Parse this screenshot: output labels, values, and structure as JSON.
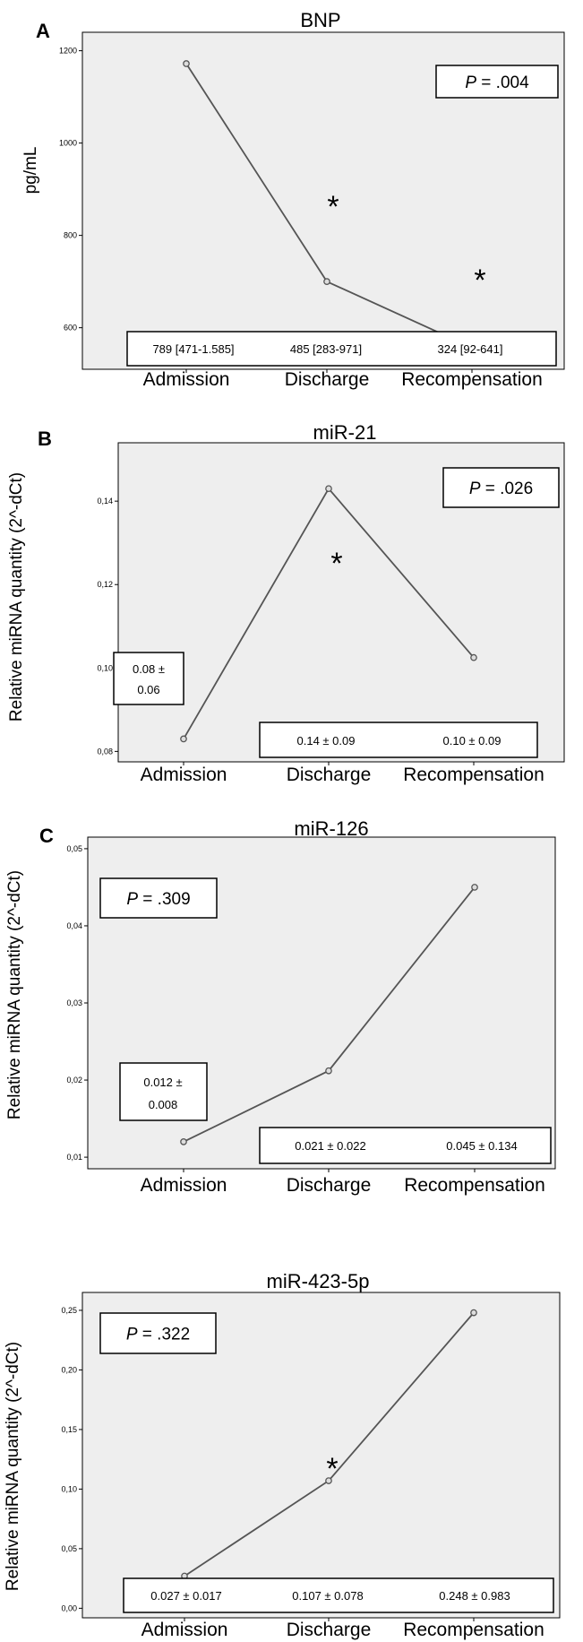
{
  "chart_data": [
    {
      "type": "line",
      "panel_letter": "A",
      "title": "BNP",
      "ylabel": "pg/mL",
      "categories": [
        "Admission",
        "Discharge",
        "Recompensation"
      ],
      "values": [
        1172,
        700,
        557
      ],
      "ylim": [
        510,
        1240
      ],
      "yticks": [
        600,
        800,
        1000,
        1200
      ],
      "ytick_labels": [
        "600",
        "800",
        "1000",
        "1200"
      ],
      "p_value": {
        "label": "P",
        "text": " = .004",
        "position": "top-right"
      },
      "significance_marks": [
        {
          "segment": 0,
          "text": "*"
        },
        {
          "segment": 1,
          "text": "*"
        }
      ],
      "value_labels": [
        {
          "category": "Admission",
          "text": "789 [471-1.585]"
        },
        {
          "category": "Discharge",
          "text": "485 [283-971]"
        },
        {
          "category": "Recompensation",
          "text": "324 [92-641]"
        }
      ],
      "grid": false,
      "legend": "none"
    },
    {
      "type": "line",
      "panel_letter": "B",
      "title": "miR-21",
      "ylabel": "Relative miRNA quantity (2^-dCt)",
      "categories": [
        "Admission",
        "Discharge",
        "Recompensation"
      ],
      "values": [
        0.083,
        0.143,
        0.1025
      ],
      "ylim": [
        0.0775,
        0.154
      ],
      "yticks": [
        0.08,
        0.1,
        0.12,
        0.14
      ],
      "ytick_labels": [
        "0,08",
        "0,10",
        "0,12",
        "0,14"
      ],
      "p_value": {
        "label": "P",
        "text": " = .026",
        "position": "top-right"
      },
      "significance_marks": [
        {
          "segment": 0,
          "text": "*"
        }
      ],
      "value_labels": [
        {
          "category": "Admission",
          "text": "0.08 ±",
          "text2": "0.06"
        },
        {
          "category": "Discharge",
          "text": "0.14 ± 0.09"
        },
        {
          "category": "Recompensation",
          "text": "0.10 ± 0.09"
        }
      ],
      "grid": false,
      "legend": "none"
    },
    {
      "type": "line",
      "panel_letter": "C",
      "title": "miR-126",
      "ylabel": "Relative miRNA quantity (2^-dCt)",
      "categories": [
        "Admission",
        "Discharge",
        "Recompensation"
      ],
      "values": [
        0.012,
        0.0212,
        0.045
      ],
      "ylim": [
        0.0085,
        0.0515
      ],
      "yticks": [
        0.01,
        0.02,
        0.03,
        0.04,
        0.05
      ],
      "ytick_labels": [
        "0,01",
        "0,02",
        "0,03",
        "0,04",
        "0,05"
      ],
      "p_value": {
        "label": "P",
        "text": " = .309",
        "position": "top-left"
      },
      "significance_marks": [],
      "value_labels": [
        {
          "category": "Admission",
          "text": "0.012 ±",
          "text2": "0.008"
        },
        {
          "category": "Discharge",
          "text": "0.021 ± 0.022"
        },
        {
          "category": "Recompensation",
          "text": "0.045 ± 0.134"
        }
      ],
      "grid": false,
      "legend": "none"
    },
    {
      "type": "line",
      "panel_letter": "",
      "title": "miR-423-5p",
      "ylabel": "Relative miRNA quantity (2^-dCt)",
      "categories": [
        "Admission",
        "Discharge",
        "Recompensation"
      ],
      "values": [
        0.027,
        0.107,
        0.248
      ],
      "ylim": [
        -0.008,
        0.265
      ],
      "yticks": [
        0.0,
        0.05,
        0.1,
        0.15,
        0.2,
        0.25
      ],
      "ytick_labels": [
        "0,00",
        "0,05",
        "0,10",
        "0,15",
        "0,20",
        "0,25"
      ],
      "p_value": {
        "label": "P",
        "text": " = .322",
        "position": "top-left"
      },
      "significance_marks": [
        {
          "segment": 0,
          "text": "*"
        }
      ],
      "value_labels": [
        {
          "category": "Admission",
          "text": "0.027 ± 0.017"
        },
        {
          "category": "Discharge",
          "text": "0.107 ± 0.078"
        },
        {
          "category": "Recompensation",
          "text": "0.248 ± 0.983"
        }
      ],
      "grid": false,
      "legend": "none"
    }
  ]
}
